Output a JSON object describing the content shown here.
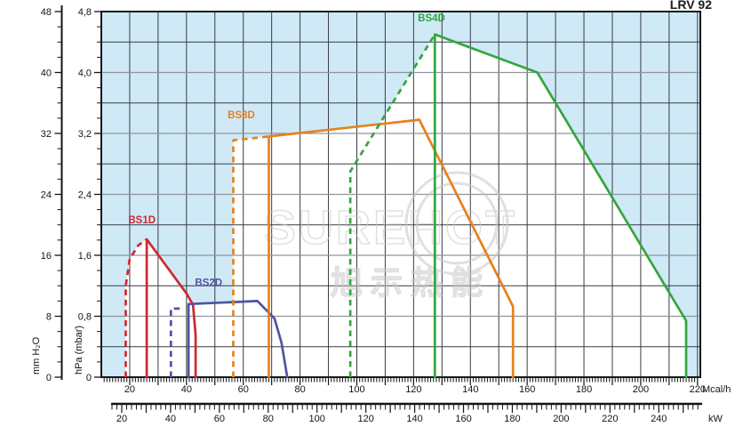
{
  "title": "LRV 92",
  "watermark": {
    "text": "SUREHOT",
    "subtext": "旭示热能"
  },
  "chart_data": {
    "type": "line",
    "title": "LRV 92",
    "description_note": "Burner working fields: pressure in combustion chamber vs thermal output",
    "plot": {
      "x_domain_mcal": [
        10,
        221
      ],
      "y_domain_mbar": [
        0,
        4.8
      ],
      "background_color": "#cfe9f7",
      "working_area_color": "#ffffff",
      "grid_x_step_mcal": 10,
      "grid_y_step_mbar": 0.4,
      "grid_minor_color": "#383c42",
      "grid_major_color": "#8f959b",
      "border_color": "#15181c"
    },
    "axes": {
      "y_mm_h2o": {
        "label": "mm H₂O",
        "tick_labels": [
          0,
          8,
          16,
          24,
          32,
          40,
          48
        ],
        "minor_step": 2,
        "max": 48
      },
      "y_hpa": {
        "label": "hPa (mbar)",
        "tick_labels": [
          "0",
          "0,8",
          "1,6",
          "2,4",
          "3,2",
          "4,0",
          "4,8"
        ],
        "tick_values": [
          0,
          0.8,
          1.6,
          2.4,
          3.2,
          4.0,
          4.8
        ],
        "minor_step": 0.2
      },
      "x_mcal": {
        "unit": "Mcal/h",
        "tick_labels": [
          20,
          40,
          60,
          80,
          100,
          120,
          140,
          160,
          180,
          200,
          220
        ],
        "minor_step": 1,
        "medium_step": 10
      },
      "x_kw": {
        "unit": "kW",
        "tick_labels": [
          20,
          40,
          60,
          80,
          100,
          120,
          140,
          160,
          180,
          200,
          220,
          240
        ],
        "minor_step": 2,
        "medium_step": 10,
        "kw_per_mcal": 1.163,
        "ruler_span_kw": [
          16,
          256
        ]
      }
    },
    "envelope_mcal_mbar": [
      [
        18.6,
        0
      ],
      [
        18.6,
        1.2
      ],
      [
        20,
        1.55
      ],
      [
        23,
        1.73
      ],
      [
        26,
        1.81
      ],
      [
        40,
        1.1
      ],
      [
        42.3,
        0.96
      ],
      [
        56.5,
        0.99
      ],
      [
        56.5,
        3.11
      ],
      [
        69,
        3.16
      ],
      [
        108,
        3.32
      ],
      [
        127.5,
        4.5
      ],
      [
        163.6,
        4.0
      ],
      [
        216,
        0.74
      ],
      [
        216,
        0
      ]
    ],
    "series": [
      {
        "name": "BS1D",
        "color": "#d02830",
        "solid": [
          [
            26,
            0
          ],
          [
            26,
            1.81
          ],
          [
            40,
            1.1
          ],
          [
            42.3,
            0.95
          ],
          [
            43.2,
            0.55
          ],
          [
            43.2,
            0
          ]
        ],
        "dashed": [
          [
            18.6,
            0
          ],
          [
            18.6,
            1.2
          ],
          [
            20,
            1.55
          ],
          [
            23,
            1.73
          ],
          [
            26,
            1.81
          ]
        ],
        "label_at": [
          19.5,
          2.02
        ]
      },
      {
        "name": "BS2D",
        "color": "#5053a4",
        "solid": [
          [
            40.7,
            0
          ],
          [
            40.7,
            0.96
          ],
          [
            65,
            1.0
          ],
          [
            71,
            0.77
          ],
          [
            73.5,
            0.45
          ],
          [
            75.5,
            0
          ]
        ],
        "dashed": [
          [
            34.5,
            0
          ],
          [
            34.5,
            0.9
          ],
          [
            38.5,
            0.9
          ]
        ],
        "label_at": [
          43,
          1.2
        ]
      },
      {
        "name": "BS3D",
        "color": "#e8811c",
        "solid": [
          [
            69,
            0
          ],
          [
            69,
            3.16
          ],
          [
            122,
            3.38
          ],
          [
            155,
            0.93
          ],
          [
            155,
            0
          ]
        ],
        "dashed": [
          [
            56.5,
            0
          ],
          [
            56.5,
            3.11
          ],
          [
            69,
            3.16
          ]
        ],
        "label_at": [
          54.5,
          3.4
        ]
      },
      {
        "name": "BS4D",
        "color": "#34a63e",
        "solid": [
          [
            127.5,
            0
          ],
          [
            127.5,
            4.5
          ],
          [
            163.6,
            4.0
          ],
          [
            216,
            0.74
          ],
          [
            216,
            0
          ]
        ],
        "dashed": [
          [
            97.7,
            0
          ],
          [
            97.7,
            2.7
          ],
          [
            127.5,
            4.5
          ]
        ],
        "label_at": [
          121.5,
          4.67
        ]
      }
    ]
  }
}
